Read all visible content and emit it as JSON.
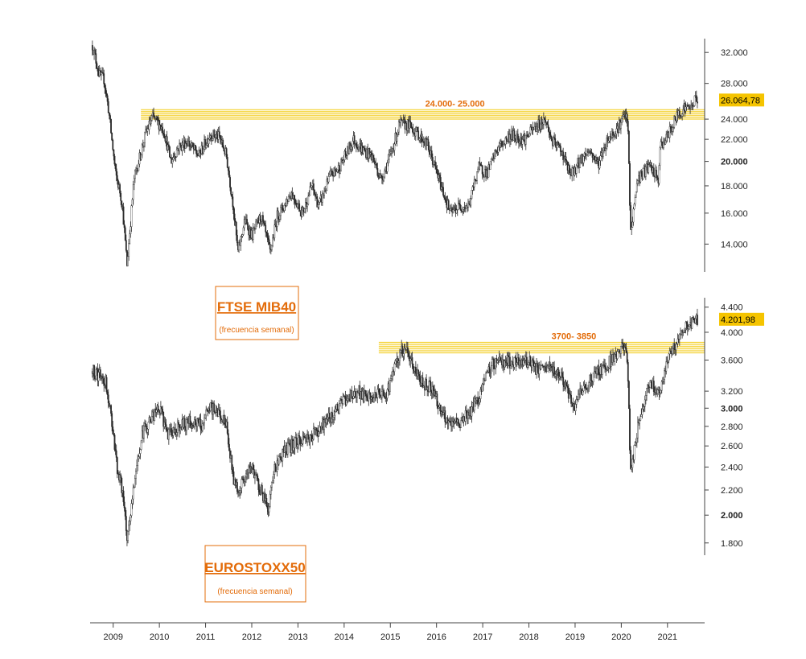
{
  "chart_data": [
    {
      "type": "line",
      "title": "FTSE MIB40",
      "subtitle": "(frecuencia semanal)",
      "scale": "log",
      "ylim": [
        12500,
        33500
      ],
      "yticks": [
        {
          "value": 32000,
          "label": "32.000",
          "bold": false
        },
        {
          "value": 28000,
          "label": "28.000",
          "bold": false
        },
        {
          "value": 24000,
          "label": "24.000",
          "bold": false
        },
        {
          "value": 22000,
          "label": "22.000",
          "bold": false
        },
        {
          "value": 20000,
          "label": "20.000",
          "bold": true
        },
        {
          "value": 18000,
          "label": "18.000",
          "bold": false
        },
        {
          "value": 16000,
          "label": "16.000",
          "bold": false
        },
        {
          "value": 14000,
          "label": "14.000",
          "bold": false
        }
      ],
      "band": {
        "low": 24000,
        "high": 25000,
        "label": "24.000- 25.000",
        "start": 2009.6,
        "color": "#f5d33a"
      },
      "last_value": {
        "value": 26064.78,
        "label": "26.064,78"
      },
      "grid": false,
      "x": [
        2008.55,
        2008.7,
        2008.8,
        2008.9,
        2009.05,
        2009.15,
        2009.2,
        2009.3,
        2009.45,
        2009.7,
        2009.85,
        2010.0,
        2010.1,
        2010.25,
        2010.4,
        2010.6,
        2010.85,
        2011.1,
        2011.3,
        2011.45,
        2011.6,
        2011.7,
        2011.85,
        2012.0,
        2012.2,
        2012.4,
        2012.55,
        2012.7,
        2012.85,
        2013.1,
        2013.3,
        2013.45,
        2013.7,
        2013.9,
        2014.2,
        2014.4,
        2014.6,
        2014.8,
        2015.0,
        2015.2,
        2015.4,
        2015.6,
        2015.8,
        2016.1,
        2016.3,
        2016.5,
        2016.7,
        2016.9,
        2017.1,
        2017.3,
        2017.6,
        2017.9,
        2018.1,
        2018.35,
        2018.5,
        2018.7,
        2018.9,
        2019.1,
        2019.3,
        2019.5,
        2019.7,
        2019.9,
        2020.1,
        2020.15,
        2020.2,
        2020.35,
        2020.6,
        2020.8,
        2020.85,
        2021.0,
        2021.2,
        2021.35,
        2021.5,
        2021.6,
        2021.65
      ],
      "values": [
        33000,
        29000,
        28500,
        25000,
        19000,
        17500,
        16500,
        12800,
        18500,
        22500,
        24200,
        23500,
        22800,
        20000,
        21200,
        21800,
        20500,
        22500,
        22200,
        20500,
        16500,
        13500,
        15500,
        14500,
        15800,
        13500,
        15800,
        16500,
        17500,
        16000,
        18000,
        16500,
        18800,
        19500,
        22000,
        21000,
        20500,
        18500,
        20500,
        23500,
        23400,
        22500,
        21500,
        18000,
        16000,
        16500,
        16500,
        19500,
        19000,
        21000,
        22400,
        22000,
        23000,
        24000,
        21800,
        21000,
        18800,
        20000,
        21000,
        19800,
        22000,
        23000,
        24500,
        22500,
        14600,
        18500,
        19600,
        18500,
        21500,
        22200,
        24300,
        25200,
        25200,
        26200,
        26064
      ]
    },
    {
      "type": "line",
      "title": "EUROSTOXX50",
      "subtitle": "(frecuencia semanal)",
      "scale": "log",
      "ylim": [
        1750,
        4450
      ],
      "yticks": [
        {
          "value": 4400,
          "label": "4.400",
          "bold": false
        },
        {
          "value": 4000,
          "label": "4.000",
          "bold": false
        },
        {
          "value": 3600,
          "label": "3.600",
          "bold": false
        },
        {
          "value": 3200,
          "label": "3.200",
          "bold": false
        },
        {
          "value": 3000,
          "label": "3.000",
          "bold": true
        },
        {
          "value": 2800,
          "label": "2.800",
          "bold": false
        },
        {
          "value": 2600,
          "label": "2.600",
          "bold": false
        },
        {
          "value": 2400,
          "label": "2.400",
          "bold": false
        },
        {
          "value": 2200,
          "label": "2.200",
          "bold": false
        },
        {
          "value": 2000,
          "label": "2.000",
          "bold": true
        },
        {
          "value": 1800,
          "label": "1.800",
          "bold": false
        }
      ],
      "band": {
        "low": 3700,
        "high": 3850,
        "label": "3700- 3850",
        "start": 2014.75,
        "color": "#f5d33a"
      },
      "last_value": {
        "value": 4201.98,
        "label": "4.201,98"
      },
      "grid": false,
      "x": [
        2008.55,
        2008.7,
        2008.85,
        2009.0,
        2009.1,
        2009.2,
        2009.3,
        2009.5,
        2009.65,
        2009.85,
        2010.0,
        2010.2,
        2010.4,
        2010.7,
        2010.9,
        2011.1,
        2011.3,
        2011.45,
        2011.6,
        2011.7,
        2011.85,
        2012.0,
        2012.2,
        2012.35,
        2012.5,
        2012.7,
        2013.0,
        2013.3,
        2013.5,
        2013.7,
        2014.0,
        2014.3,
        2014.5,
        2014.7,
        2014.9,
        2015.1,
        2015.3,
        2015.5,
        2015.7,
        2015.9,
        2016.1,
        2016.3,
        2016.5,
        2016.8,
        2017.0,
        2017.2,
        2017.4,
        2017.7,
        2018.0,
        2018.2,
        2018.4,
        2018.7,
        2018.95,
        2019.1,
        2019.4,
        2019.7,
        2019.9,
        2020.1,
        2020.15,
        2020.2,
        2020.4,
        2020.6,
        2020.85,
        2021.0,
        2021.2,
        2021.4,
        2021.55,
        2021.65
      ],
      "values": [
        3450,
        3400,
        3300,
        2750,
        2350,
        2200,
        1800,
        2400,
        2750,
        2900,
        3000,
        2700,
        2800,
        2850,
        2800,
        3000,
        2950,
        2800,
        2300,
        2200,
        2300,
        2400,
        2200,
        2050,
        2400,
        2550,
        2650,
        2700,
        2800,
        2900,
        3100,
        3200,
        3100,
        3150,
        3150,
        3500,
        3800,
        3500,
        3300,
        3250,
        2950,
        2800,
        2850,
        3000,
        3250,
        3550,
        3600,
        3550,
        3600,
        3450,
        3500,
        3400,
        3000,
        3150,
        3400,
        3550,
        3700,
        3800,
        3300,
        2350,
        2900,
        3300,
        3200,
        3600,
        3850,
        4100,
        4150,
        4200
      ]
    }
  ],
  "x_axis": {
    "labels": [
      "2009",
      "2010",
      "2011",
      "2012",
      "2013",
      "2014",
      "2015",
      "2016",
      "2017",
      "2018",
      "2019",
      "2020",
      "2021"
    ],
    "values": [
      2009,
      2010,
      2011,
      2012,
      2013,
      2014,
      2015,
      2016,
      2017,
      2018,
      2019,
      2020,
      2021
    ],
    "range": [
      2008.5,
      2021.7
    ]
  },
  "colors": {
    "candles": "#2b2b2b",
    "title_accent": "#e36c0a",
    "band": "#f5d33a",
    "last_value_bg": "#f5c400"
  }
}
